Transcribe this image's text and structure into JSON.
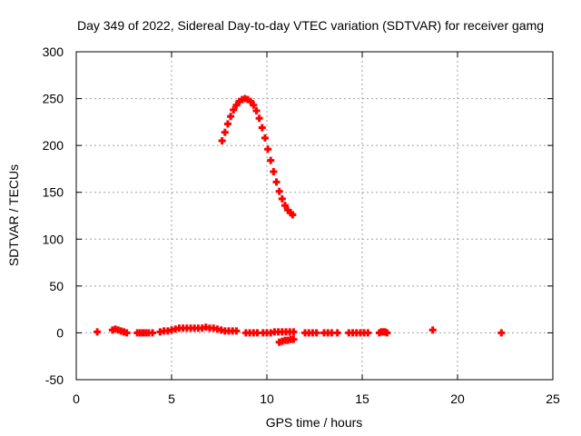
{
  "chart_data": {
    "type": "scatter",
    "title": "Day 349 of 2022, Sidereal Day-to-day VTEC variation (SDTVAR) for receiver gamg",
    "xlabel": "GPS time / hours",
    "ylabel": "SDTVAR / TECUs",
    "xlim": [
      0,
      25
    ],
    "ylim": [
      -50,
      300
    ],
    "xticks": [
      0,
      5,
      10,
      15,
      20,
      25
    ],
    "yticks": [
      -50,
      0,
      50,
      100,
      150,
      200,
      250,
      300
    ],
    "grid": true,
    "marker": "+",
    "color": "#ff0000",
    "series": [
      {
        "name": "SDTVAR",
        "points": [
          [
            1.1,
            1
          ],
          [
            1.9,
            3
          ],
          [
            2.05,
            4
          ],
          [
            2.2,
            3
          ],
          [
            2.35,
            2
          ],
          [
            2.5,
            1
          ],
          [
            2.65,
            0
          ],
          [
            3.2,
            0
          ],
          [
            3.35,
            0
          ],
          [
            3.5,
            0
          ],
          [
            3.65,
            0
          ],
          [
            3.8,
            0
          ],
          [
            4.0,
            0
          ],
          [
            4.4,
            1
          ],
          [
            4.6,
            2
          ],
          [
            4.8,
            2
          ],
          [
            5.0,
            3
          ],
          [
            5.2,
            4
          ],
          [
            5.4,
            5
          ],
          [
            5.6,
            5
          ],
          [
            5.8,
            5
          ],
          [
            6.0,
            5
          ],
          [
            6.2,
            5
          ],
          [
            6.4,
            5
          ],
          [
            6.6,
            5
          ],
          [
            6.8,
            6
          ],
          [
            7.0,
            5
          ],
          [
            7.2,
            5
          ],
          [
            7.4,
            4
          ],
          [
            7.6,
            3
          ],
          [
            7.8,
            2
          ],
          [
            8.0,
            2
          ],
          [
            8.2,
            2
          ],
          [
            8.4,
            2
          ],
          [
            8.9,
            0
          ],
          [
            9.1,
            0
          ],
          [
            9.3,
            0
          ],
          [
            9.5,
            0
          ],
          [
            9.8,
            0
          ],
          [
            10.0,
            0
          ],
          [
            10.2,
            0
          ],
          [
            10.4,
            1
          ],
          [
            10.6,
            1
          ],
          [
            10.8,
            1
          ],
          [
            11.0,
            1
          ],
          [
            11.2,
            1
          ],
          [
            11.4,
            1
          ],
          [
            10.65,
            -10
          ],
          [
            10.8,
            -9
          ],
          [
            10.95,
            -8
          ],
          [
            11.1,
            -8
          ],
          [
            11.25,
            -7
          ],
          [
            11.4,
            -7
          ],
          [
            12.0,
            0
          ],
          [
            12.2,
            0
          ],
          [
            12.4,
            0
          ],
          [
            12.6,
            0
          ],
          [
            13.0,
            0
          ],
          [
            13.2,
            0
          ],
          [
            13.4,
            0
          ],
          [
            13.7,
            0
          ],
          [
            14.3,
            0
          ],
          [
            14.5,
            0
          ],
          [
            14.7,
            0
          ],
          [
            14.9,
            0
          ],
          [
            15.1,
            0
          ],
          [
            15.3,
            0
          ],
          [
            15.9,
            0
          ],
          [
            16.0,
            1
          ],
          [
            16.1,
            1
          ],
          [
            16.2,
            1
          ],
          [
            16.3,
            0
          ],
          [
            18.7,
            3
          ],
          [
            22.3,
            0
          ],
          [
            7.65,
            205
          ],
          [
            7.8,
            214
          ],
          [
            7.95,
            223
          ],
          [
            8.1,
            231
          ],
          [
            8.25,
            238
          ],
          [
            8.4,
            243
          ],
          [
            8.55,
            247
          ],
          [
            8.7,
            249
          ],
          [
            8.85,
            250
          ],
          [
            9.0,
            249
          ],
          [
            9.15,
            247
          ],
          [
            9.3,
            243
          ],
          [
            9.45,
            237
          ],
          [
            9.6,
            229
          ],
          [
            9.75,
            219
          ],
          [
            9.9,
            208
          ],
          [
            10.05,
            196
          ],
          [
            10.2,
            184
          ],
          [
            10.35,
            172
          ],
          [
            10.5,
            161
          ],
          [
            10.65,
            151
          ],
          [
            10.8,
            143
          ],
          [
            10.95,
            136
          ],
          [
            11.1,
            131
          ],
          [
            11.25,
            128
          ],
          [
            11.35,
            126
          ]
        ]
      }
    ]
  }
}
